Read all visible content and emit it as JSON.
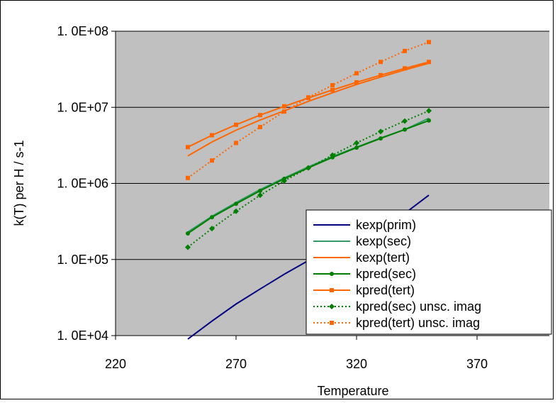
{
  "chart_data": {
    "type": "line",
    "xlabel": "Temperature",
    "ylabel": "k(T)  per H / s-1",
    "xlim": [
      220,
      400
    ],
    "ylim": [
      10000,
      100000000
    ],
    "y_scale": "log",
    "x_ticks": [
      220,
      270,
      320,
      370
    ],
    "y_ticks": [
      {
        "value": 10000,
        "label": "1. 0E+04"
      },
      {
        "value": 100000,
        "label": "1. 0E+05"
      },
      {
        "value": 1000000,
        "label": "1. 0E+06"
      },
      {
        "value": 10000000,
        "label": "1. 0E+07"
      },
      {
        "value": 100000000,
        "label": "1. 0E+08"
      }
    ],
    "grid": "horizontal",
    "plot_background": "#c0c0c0",
    "legend_position": "bottom-right",
    "series": [
      {
        "name": "kexp(prim)",
        "color": "#000080",
        "style": "solid",
        "marker": "none",
        "x": [
          250,
          260,
          270,
          280,
          290,
          300,
          310,
          320,
          330,
          340,
          350
        ],
        "y": [
          9000,
          15500,
          26000,
          41000,
          64000,
          97000,
          143000,
          207000,
          292000,
          403000,
          700000
        ]
      },
      {
        "name": "kexp(sec)",
        "color": "#339966",
        "style": "solid",
        "marker": "none",
        "x": [
          250,
          260,
          270,
          280,
          290,
          300,
          310,
          320,
          330,
          340,
          350
        ],
        "y": [
          230000,
          370000,
          560000,
          830000,
          1180000,
          1650000,
          2250000,
          3000000,
          3950000,
          5100000,
          7200000
        ]
      },
      {
        "name": "kexp(tert)",
        "color": "#ff6600",
        "style": "solid",
        "marker": "none",
        "x": [
          250,
          260,
          270,
          280,
          290,
          300,
          310,
          320,
          330,
          340,
          350
        ],
        "y": [
          2300000,
          3500000,
          5000000,
          6800000,
          9000000,
          12000000,
          15500000,
          20000000,
          25000000,
          31000000,
          38000000
        ]
      },
      {
        "name": "kpred(sec)",
        "color": "#008000",
        "style": "solid",
        "marker": "circle",
        "x": [
          250,
          260,
          270,
          280,
          290,
          300,
          310,
          320,
          330,
          340,
          350
        ],
        "y": [
          220000,
          360000,
          540000,
          800000,
          1150000,
          1600000,
          2200000,
          2950000,
          3900000,
          5100000,
          6700000
        ]
      },
      {
        "name": "kpred(tert)",
        "color": "#ff6600",
        "style": "solid",
        "marker": "square",
        "x": [
          250,
          260,
          270,
          280,
          290,
          300,
          310,
          320,
          330,
          340,
          350
        ],
        "y": [
          3000000,
          4300000,
          5900000,
          7900000,
          10300000,
          13300000,
          16900000,
          21300000,
          26500000,
          32500000,
          39500000
        ]
      },
      {
        "name": "kpred(sec) unsc. imag",
        "color": "#008000",
        "style": "dotted",
        "marker": "diamond",
        "x": [
          250,
          260,
          270,
          280,
          290,
          300,
          310,
          320,
          330,
          340,
          350
        ],
        "y": [
          145000,
          255000,
          430000,
          700000,
          1080000,
          1600000,
          2350000,
          3400000,
          4800000,
          6600000,
          9000000
        ]
      },
      {
        "name": "kpred(tert) unsc. imag",
        "color": "#ff6600",
        "style": "dotted",
        "marker": "square",
        "x": [
          250,
          260,
          270,
          280,
          290,
          300,
          310,
          320,
          330,
          340,
          350
        ],
        "y": [
          1180000,
          2000000,
          3400000,
          5500000,
          8800000,
          13500000,
          19500000,
          28000000,
          39500000,
          55000000,
          72000000
        ]
      }
    ]
  }
}
